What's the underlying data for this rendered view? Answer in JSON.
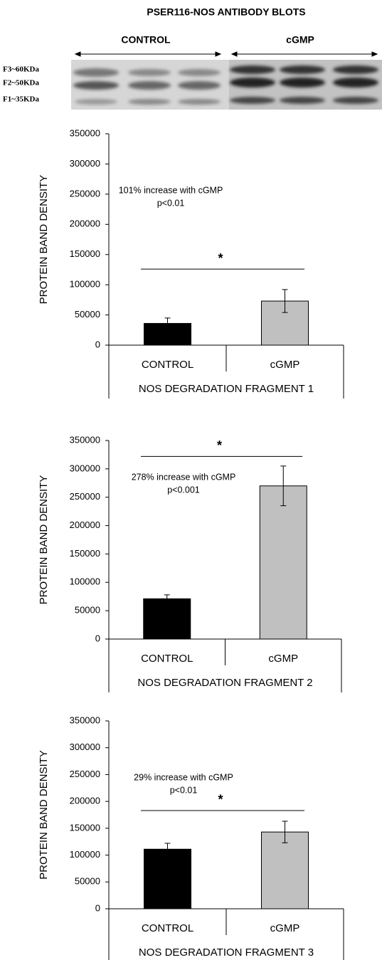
{
  "header": {
    "title": "PSER116-NOS ANTIBODY BLOTS",
    "groups": [
      "CONTROL",
      "cGMP"
    ],
    "bands": [
      "F3~60KDa",
      "F2~50KDa",
      "F1~35KDa"
    ]
  },
  "chart_data": [
    {
      "type": "bar",
      "ylabel": "PROTEIN BAND DENSITY",
      "xlabel": "NOS DEGRADATION FRAGMENT 1",
      "categories": [
        "CONTROL",
        "cGMP"
      ],
      "values": [
        36000,
        73000
      ],
      "errors": [
        9000,
        19000
      ],
      "colors": [
        "#000000",
        "#c0c0c0"
      ],
      "ylim": [
        0,
        350000
      ],
      "yticks": [
        0,
        50000,
        100000,
        150000,
        200000,
        250000,
        300000,
        350000
      ],
      "annotation": [
        "101% increase with cGMP",
        "p<0.01"
      ],
      "significance": {
        "label": "*",
        "y": 126000
      }
    },
    {
      "type": "bar",
      "ylabel": "PROTEIN BAND DENSITY",
      "xlabel": "NOS DEGRADATION FRAGMENT 2",
      "categories": [
        "CONTROL",
        "cGMP"
      ],
      "values": [
        71000,
        270000
      ],
      "errors": [
        7000,
        35000
      ],
      "colors": [
        "#000000",
        "#c0c0c0"
      ],
      "ylim": [
        0,
        350000
      ],
      "yticks": [
        0,
        50000,
        100000,
        150000,
        200000,
        250000,
        300000,
        350000
      ],
      "annotation": [
        "278% increase with cGMP",
        "p<0.001"
      ],
      "significance": {
        "label": "*",
        "y": 322000
      }
    },
    {
      "type": "bar",
      "ylabel": "PROTEIN BAND DENSITY",
      "xlabel": "NOS DEGRADATION FRAGMENT 3",
      "categories": [
        "CONTROL",
        "cGMP"
      ],
      "values": [
        111000,
        143000
      ],
      "errors": [
        11000,
        20000
      ],
      "colors": [
        "#000000",
        "#c0c0c0"
      ],
      "ylim": [
        0,
        350000
      ],
      "yticks": [
        0,
        50000,
        100000,
        150000,
        200000,
        250000,
        300000,
        350000
      ],
      "annotation": [
        "29% increase with cGMP",
        "p<0.01"
      ],
      "significance": {
        "label": "*",
        "y": 183000
      }
    }
  ]
}
